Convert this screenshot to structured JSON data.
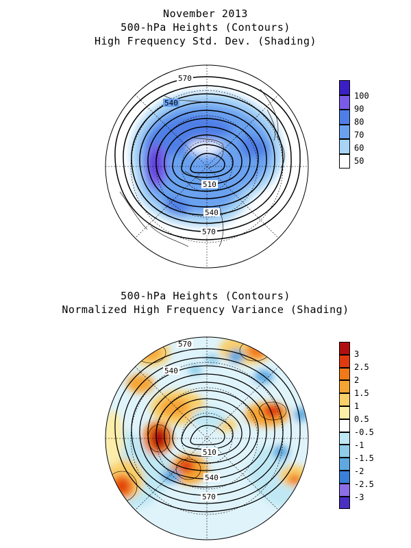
{
  "top_panel": {
    "title_lines": [
      "November 2013",
      "500-hPa Heights (Contours)",
      "High Frequency Std. Dev. (Shading)"
    ],
    "contour_labels": [
      "570",
      "540",
      "510",
      "540",
      "570"
    ],
    "colorbar": {
      "labels": [
        "100",
        "90",
        "80",
        "70",
        "60",
        "50"
      ],
      "colors": [
        "#3b1fc4",
        "#7a5be8",
        "#4f7fe6",
        "#6aa2f0",
        "#a8d4f6",
        "#ffffff"
      ]
    }
  },
  "bottom_panel": {
    "title_lines": [
      "500-hPa Heights (Contours)",
      "Normalized High Frequency Variance (Shading)"
    ],
    "contour_labels": [
      "570",
      "540",
      "510",
      "540",
      "570"
    ],
    "colorbar": {
      "labels": [
        "3",
        "2.5",
        "2",
        "1.5",
        "1",
        "0.5",
        "-0.5",
        "-1",
        "-1.5",
        "-2",
        "-2.5",
        "-3"
      ],
      "colors": [
        "#b01010",
        "#e03a10",
        "#f07a1a",
        "#f5a534",
        "#f9cf6a",
        "#fdeea8",
        "#ffffff",
        "#bfe8f4",
        "#8fcdea",
        "#5fa8e0",
        "#3a7fd8",
        "#8c6ee6",
        "#4a2fc0"
      ]
    }
  }
}
